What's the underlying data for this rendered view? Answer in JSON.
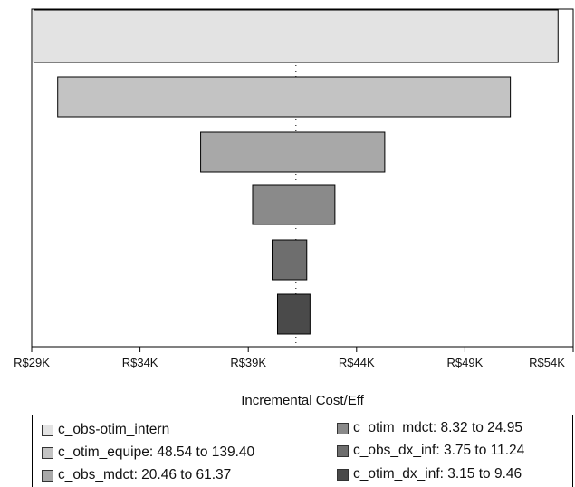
{
  "chart_data": {
    "type": "tornado",
    "xlabel": "Incremental Cost/Eff",
    "xlim": [
      29000,
      54000
    ],
    "x_ticks": [
      "R$29K",
      "R$34K",
      "R$39K",
      "R$44K",
      "R$49K",
      "R$54K"
    ],
    "x_tick_values": [
      29000,
      34000,
      39000,
      44000,
      49000,
      54000
    ],
    "base_value": 41200,
    "bars": [
      {
        "variable": "c_obs-otim_intern",
        "range_label": "",
        "low": 29100,
        "high": 53300,
        "color": "#e3e3e3"
      },
      {
        "variable": "c_otim_equipe",
        "range_label": "48.54 to 139.40",
        "low": 30200,
        "high": 51100,
        "color": "#c3c3c3"
      },
      {
        "variable": "c_obs_mdct",
        "range_label": "20.46 to 61.37",
        "low": 36800,
        "high": 45300,
        "color": "#a8a8a8"
      },
      {
        "variable": "c_otim_mdct",
        "range_label": "8.32 to 24.95",
        "low": 39200,
        "high": 43000,
        "color": "#8a8a8a"
      },
      {
        "variable": "c_obs_dx_inf",
        "range_label": "3.75 to 11.24",
        "low": 40100,
        "high": 41700,
        "color": "#6e6e6e"
      },
      {
        "variable": "c_otim_dx_inf",
        "range_label": "3.15 to 9.46",
        "low": 40350,
        "high": 41850,
        "color": "#4a4a4a"
      }
    ],
    "legend": {
      "placement": "bottom",
      "items": [
        {
          "text": "c_obs-otim_intern",
          "color": "#e3e3e3"
        },
        {
          "text": "c_otim_equipe: 48.54 to 139.40",
          "color": "#c3c3c3"
        },
        {
          "text": "c_obs_mdct: 20.46 to 61.37",
          "color": "#a8a8a8"
        },
        {
          "text": "c_otim_mdct: 8.32 to 24.95",
          "color": "#8a8a8a"
        },
        {
          "text": "c_obs_dx_inf: 3.75 to 11.24",
          "color": "#6e6e6e"
        },
        {
          "text": "c_otim_dx_inf: 3.15 to 9.46",
          "color": "#4a4a4a"
        }
      ]
    },
    "grid": false
  }
}
